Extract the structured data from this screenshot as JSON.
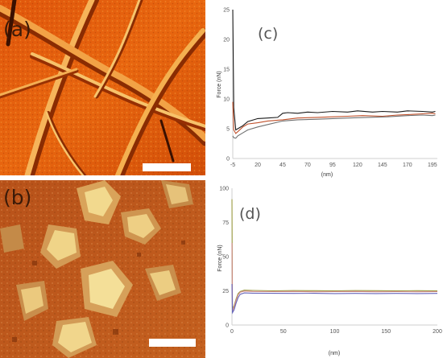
{
  "panels": {
    "a": {
      "label": "(a)",
      "scale_bar": ""
    },
    "b": {
      "label": "(b)",
      "scale_bar": ""
    }
  },
  "chart_data": [
    {
      "type": "line",
      "panel_label": "(c)",
      "xlabel": "(nm)",
      "ylabel": "Force (nN)",
      "xlim": [
        -5,
        200
      ],
      "ylim": [
        0,
        25
      ],
      "xticks": [
        -5,
        20,
        45,
        70,
        95,
        120,
        145,
        170,
        195
      ],
      "yticks": [
        0,
        5,
        10,
        15,
        20,
        25
      ],
      "grid": false,
      "colors": [
        "#1a1a1a",
        "#c0502a",
        "#707070"
      ],
      "series": [
        {
          "x": [
            -5,
            -4,
            -2,
            0,
            5,
            10,
            20,
            30,
            40,
            45,
            50,
            60,
            70,
            80,
            95,
            110,
            120,
            135,
            145,
            160,
            170,
            185,
            195,
            198
          ],
          "y": [
            25,
            8.5,
            4.8,
            5.0,
            5.5,
            6.2,
            6.7,
            6.8,
            6.9,
            7.6,
            7.7,
            7.6,
            7.8,
            7.7,
            7.9,
            7.8,
            8.0,
            7.8,
            7.9,
            7.8,
            8.0,
            7.9,
            7.8,
            7.9
          ]
        },
        {
          "x": [
            -5,
            -4,
            -2,
            0,
            5,
            10,
            20,
            30,
            45,
            60,
            80,
            95,
            110,
            125,
            145,
            160,
            175,
            185,
            195,
            198
          ],
          "y": [
            9.5,
            4.8,
            4.2,
            4.5,
            5.3,
            5.8,
            6.0,
            6.3,
            6.5,
            6.8,
            6.9,
            7.0,
            7.1,
            7.2,
            7.1,
            7.3,
            7.4,
            7.5,
            7.6,
            7.5
          ]
        },
        {
          "x": [
            -5,
            -4,
            -2,
            0,
            5,
            10,
            20,
            30,
            45,
            60,
            80,
            95,
            110,
            130,
            150,
            170,
            185,
            195,
            198
          ],
          "y": [
            3.8,
            3.5,
            3.4,
            3.8,
            4.3,
            4.8,
            5.3,
            5.7,
            6.3,
            6.5,
            6.6,
            6.7,
            6.8,
            6.9,
            7.0,
            7.2,
            7.3,
            7.2,
            7.3
          ]
        }
      ]
    },
    {
      "type": "line",
      "panel_label": "(d)",
      "xlabel": "(nm)",
      "ylabel": "Force (nN)",
      "xlim": [
        0,
        200
      ],
      "ylim": [
        0,
        100
      ],
      "xticks": [
        0,
        50,
        100,
        150,
        200
      ],
      "yticks": [
        0,
        25,
        50,
        75,
        100
      ],
      "grid": false,
      "colors": [
        "#9a9a40",
        "#d08a8a",
        "#6666bb"
      ],
      "series": [
        {
          "x": [
            0,
            0.5,
            2,
            4,
            6,
            8,
            12,
            20,
            40,
            60,
            80,
            100,
            120,
            140,
            160,
            180,
            200
          ],
          "y": [
            92,
            12,
            14,
            19,
            23,
            24.5,
            25.5,
            25.3,
            25.0,
            25.2,
            25.1,
            25.0,
            25.2,
            25.1,
            25.0,
            25.1,
            25.0
          ]
        },
        {
          "x": [
            0,
            0.5,
            2,
            4,
            6,
            8,
            12,
            20,
            40,
            60,
            80,
            100,
            120,
            140,
            160,
            180,
            200
          ],
          "y": [
            60,
            10,
            13,
            18,
            22,
            24,
            24.8,
            24.5,
            24.4,
            24.5,
            24.3,
            24.4,
            24.5,
            24.3,
            24.4,
            24.3,
            24.4
          ]
        },
        {
          "x": [
            0,
            0.5,
            2,
            4,
            6,
            8,
            12,
            20,
            40,
            60,
            80,
            100,
            120,
            140,
            160,
            180,
            200
          ],
          "y": [
            30,
            9,
            11,
            16,
            20,
            22.5,
            23.5,
            23.3,
            23.2,
            23.1,
            23.2,
            23.0,
            23.1,
            23.0,
            23.1,
            23.0,
            23.1
          ]
        }
      ]
    }
  ]
}
